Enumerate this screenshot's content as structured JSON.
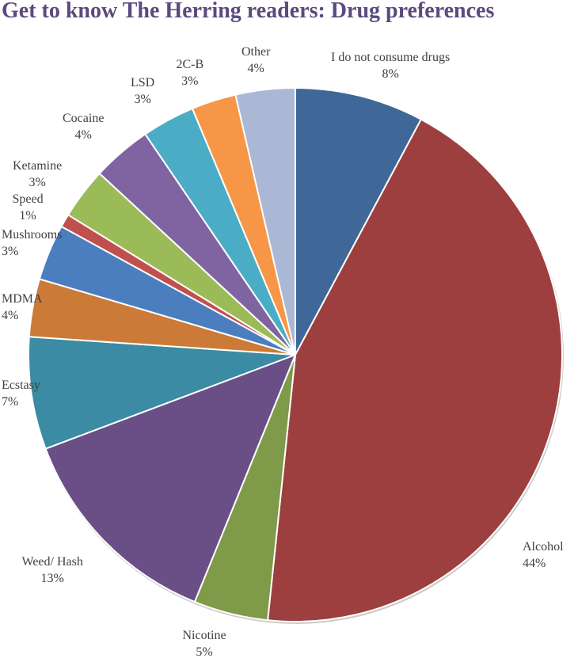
{
  "chart_data": {
    "type": "pie",
    "title": "Get to know The Herring readers: Drug preferences",
    "categories": [
      "I do not consume drugs",
      "Alcohol",
      "Nicotine",
      "Weed/ Hash",
      "Ecstasy",
      "MDMA",
      "Mushrooms",
      "Speed",
      "Ketamine",
      "Cocaine",
      "LSD",
      "2C-B",
      "Other"
    ],
    "values": [
      7.8,
      43.8,
      4.5,
      13.1,
      6.8,
      3.5,
      3.4,
      0.8,
      3.1,
      3.6,
      3.2,
      2.7,
      3.6
    ],
    "labels": [
      "8%",
      "44%",
      "5%",
      "13%",
      "7%",
      "4%",
      "3%",
      "1%",
      "3%",
      "4%",
      "3%",
      "3%",
      "4%"
    ],
    "colors": [
      "#3F6797",
      "#9C3F3E",
      "#7F9A48",
      "#6A4F87",
      "#3A8BA3",
      "#CC7A37",
      "#4B7EBF",
      "#C0504D",
      "#9BBB59",
      "#8064A2",
      "#4BACC6",
      "#F79646",
      "#AAB8D6"
    ],
    "start_angle": 0,
    "direction": "clockwise",
    "legend": "none"
  }
}
